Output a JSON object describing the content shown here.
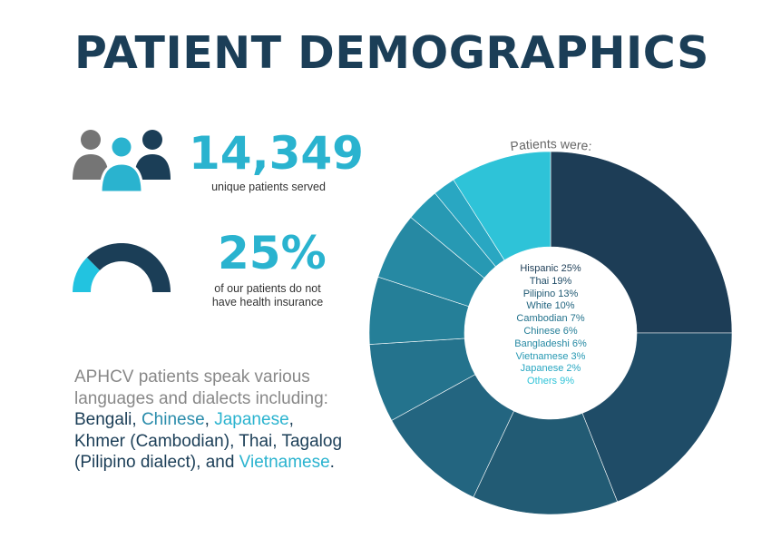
{
  "title": "PATIENT DEMOGRAPHICS",
  "stats": {
    "patients_served": {
      "value": "14,349",
      "caption": "unique patients served"
    },
    "uninsured": {
      "value": "25%",
      "caption_line1": "of our patients do not",
      "caption_line2": "have health insurance",
      "fraction": 0.25
    }
  },
  "icons": {
    "people": "people-group-icon",
    "gauge": "half-gauge-icon"
  },
  "languages": {
    "intro": "APHCV patients speak various languages and dialects including:",
    "items": [
      "Bengali",
      "Chinese",
      "Japanese",
      "Khmer (Cambodian)",
      "Thai",
      "Tagalog (Pilipino dialect)",
      "Vietnamese"
    ],
    "connector": "and",
    "end": "."
  },
  "colors": {
    "navy": "#1b3e57",
    "cyan": "#2ab3cf",
    "gray": "#757575"
  },
  "chart_data": {
    "type": "pie",
    "title": "Patients were:",
    "categories": [
      "Hispanic",
      "Thai",
      "Pilipino",
      "White",
      "Cambodian",
      "Chinese",
      "Bangladeshi",
      "Vietnamese",
      "Japanese",
      "Others"
    ],
    "values": [
      25,
      19,
      13,
      10,
      7,
      6,
      6,
      3,
      2,
      9
    ],
    "labels": [
      "Hispanic 25%",
      "Thai 19%",
      "Pilipino 13%",
      "White 10%",
      "Cambodian 7%",
      "Chinese 6%",
      "Bangladeshi 6%",
      "Vietnamese 3%",
      "Japanese 2%",
      "Others 9%"
    ],
    "colors": [
      "#1d3d56",
      "#1f4c67",
      "#225b74",
      "#236580",
      "#24738d",
      "#257f98",
      "#2689a3",
      "#2799b3",
      "#29a7c2",
      "#2ec3d8"
    ],
    "legend_colors": [
      "#1d3d56",
      "#1f4c67",
      "#225b74",
      "#236580",
      "#24738d",
      "#257f98",
      "#2689a3",
      "#2799b3",
      "#29a7c2",
      "#2ec3d8"
    ],
    "donut": true,
    "legend_placement": "center"
  }
}
